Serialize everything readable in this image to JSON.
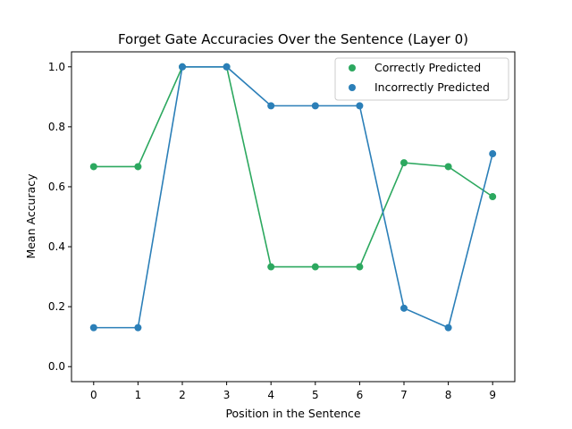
{
  "chart_data": {
    "type": "line",
    "title": "Forget Gate Accuracies Over the Sentence (Layer  0)",
    "xlabel": "Position in the Sentence",
    "ylabel": "Mean Accuracy",
    "xlim": [
      -0.5,
      9.5
    ],
    "ylim": [
      -0.05,
      1.05
    ],
    "x": [
      0,
      1,
      2,
      3,
      4,
      5,
      6,
      7,
      8,
      9
    ],
    "xticks": [
      "0",
      "1",
      "2",
      "3",
      "4",
      "5",
      "6",
      "7",
      "8",
      "9"
    ],
    "yticks": [
      0.0,
      0.2,
      0.4,
      0.6,
      0.8,
      1.0
    ],
    "ytick_labels": [
      "0.0",
      "0.2",
      "0.4",
      "0.6",
      "0.8",
      "1.0"
    ],
    "grid": false,
    "legend_position": "top-right",
    "series": [
      {
        "name": "Correctly Predicted",
        "color": "#2ca85f",
        "values": [
          0.667,
          0.667,
          1.0,
          1.0,
          0.333,
          0.333,
          0.333,
          0.68,
          0.667,
          0.567
        ]
      },
      {
        "name": "Incorrectly Predicted",
        "color": "#2b7fb8",
        "values": [
          0.13,
          0.13,
          1.0,
          1.0,
          0.87,
          0.87,
          0.87,
          0.195,
          0.13,
          0.71
        ]
      }
    ]
  }
}
